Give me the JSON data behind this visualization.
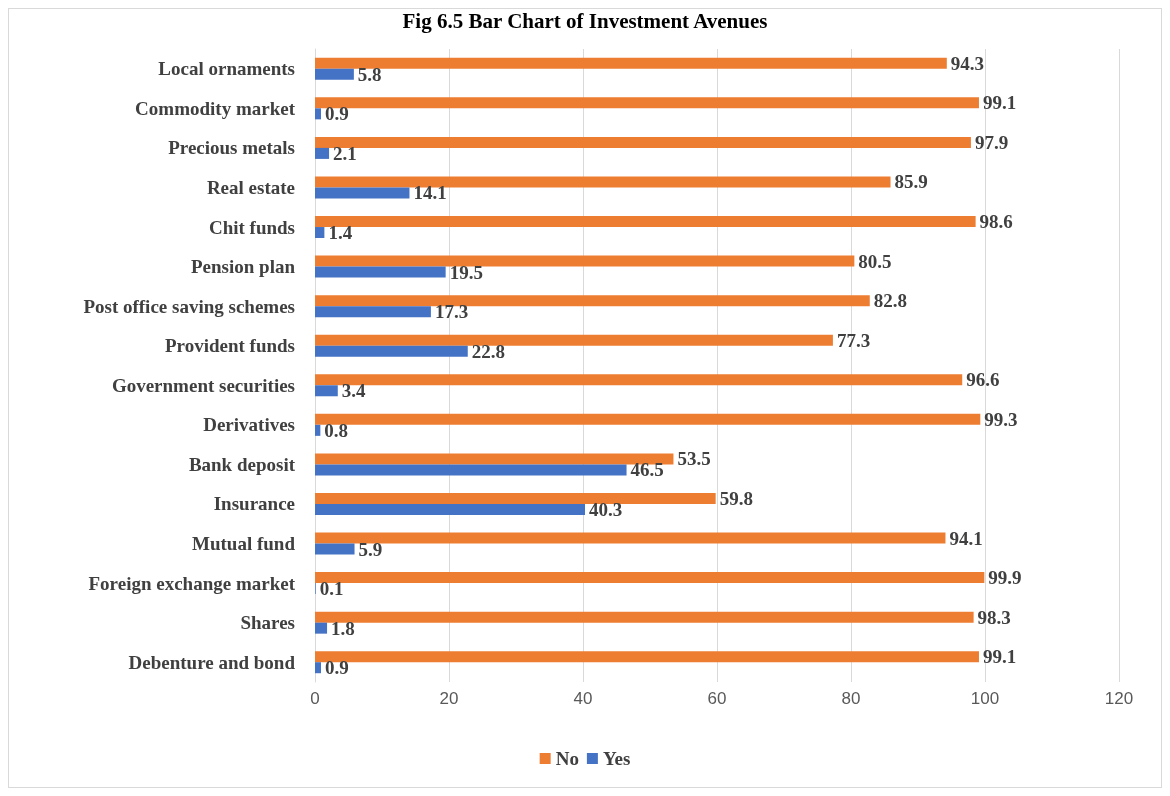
{
  "chart_data": {
    "type": "bar",
    "orientation": "horizontal",
    "title": "Fig 6.5 Bar Chart of Investment Avenues",
    "categories": [
      "Local ornaments",
      "Commodity market",
      "Precious metals",
      "Real estate",
      "Chit funds",
      "Pension plan",
      "Post office saving schemes",
      "Provident funds",
      "Government securities",
      "Derivatives",
      "Bank deposit",
      "Insurance",
      "Mutual fund",
      "Foreign exchange market",
      "Shares",
      "Debenture and bond"
    ],
    "series": [
      {
        "name": "No",
        "color": "#ed7d31",
        "values": [
          94.3,
          99.1,
          97.9,
          85.9,
          98.6,
          80.5,
          82.8,
          77.3,
          96.6,
          99.3,
          53.5,
          59.8,
          94.1,
          99.9,
          98.3,
          99.1
        ]
      },
      {
        "name": "Yes",
        "color": "#4472c4",
        "values": [
          5.8,
          0.9,
          2.1,
          14.1,
          1.4,
          19.5,
          17.3,
          22.8,
          3.4,
          0.8,
          46.5,
          40.3,
          5.9,
          0.1,
          1.8,
          0.9
        ]
      }
    ],
    "xlim": [
      0,
      120
    ],
    "xticks": [
      0,
      20,
      40,
      60,
      80,
      100,
      120
    ],
    "grid": "x",
    "legend": "bottom",
    "data_labels": true
  }
}
